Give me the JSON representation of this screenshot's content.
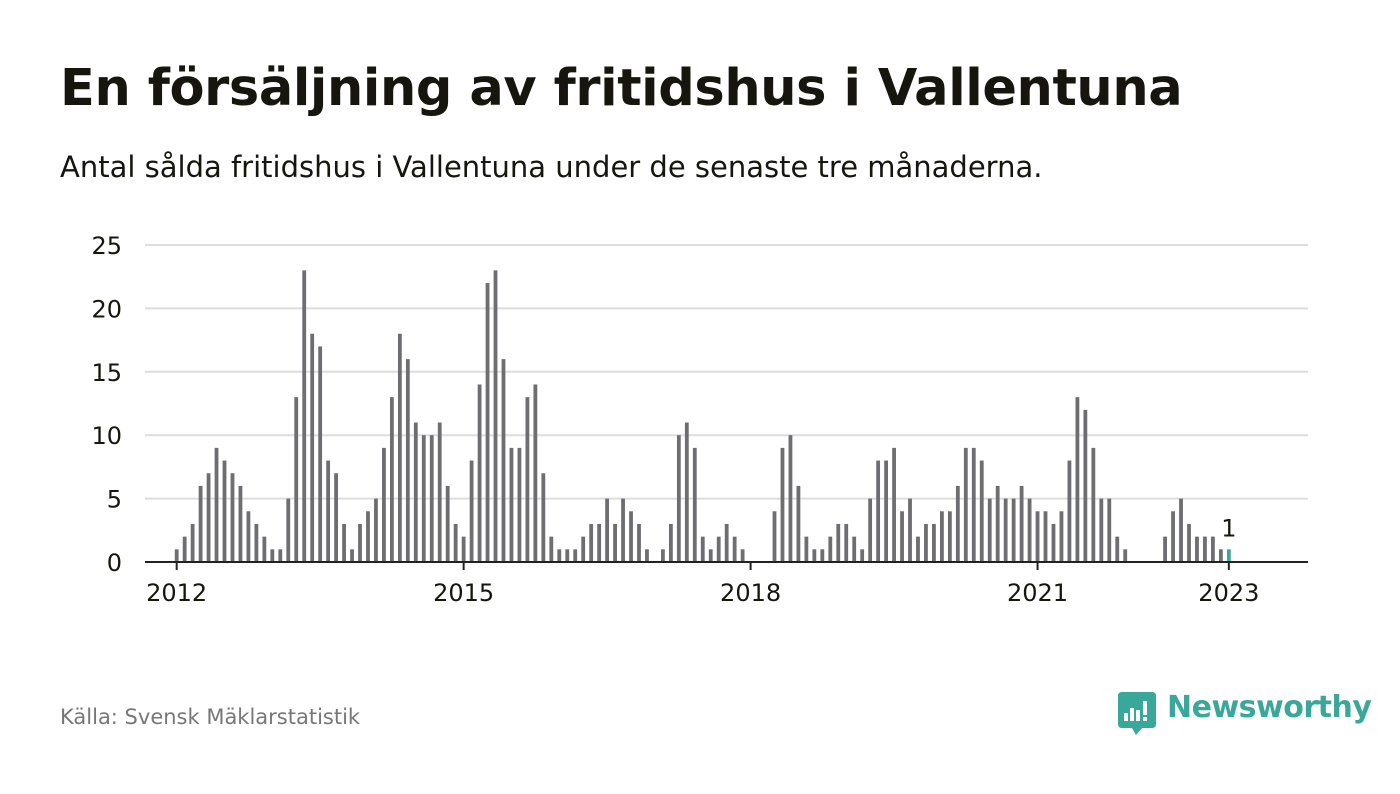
{
  "header": {
    "title": "En försäljning av fritidshus i Vallentuna",
    "subtitle": "Antal sålda fritidshus i Vallentuna under de senaste tre månaderna."
  },
  "footer": {
    "source": "Källa: Svensk Mäklarstatistik",
    "brand": "Newsworthy"
  },
  "colors": {
    "bar": "#6d6d72",
    "highlight": "#3aa79b",
    "grid": "#dddddd",
    "axis": "#222222",
    "text": "#16160f",
    "muted": "#777777"
  },
  "chart_data": {
    "type": "bar",
    "title": "En försäljning av fritidshus i Vallentuna",
    "subtitle": "Antal sålda fritidshus i Vallentuna under de senaste tre månaderna.",
    "xlabel": "",
    "ylabel": "",
    "ylim": [
      0,
      25
    ],
    "yticks": [
      0,
      5,
      10,
      15,
      20,
      25
    ],
    "xticks": [
      "2012",
      "2015",
      "2018",
      "2021",
      "2023"
    ],
    "grid": true,
    "start_month": "2011-07",
    "categories": [
      "2011-07",
      "2011-08",
      "2011-09",
      "2011-10",
      "2011-11",
      "2011-12",
      "2012-01",
      "2012-02",
      "2012-03",
      "2012-04",
      "2012-05",
      "2012-06",
      "2012-07",
      "2012-08",
      "2012-09",
      "2012-10",
      "2012-11",
      "2012-12",
      "2013-01",
      "2013-02",
      "2013-03",
      "2013-04",
      "2013-05",
      "2013-06",
      "2013-07",
      "2013-08",
      "2013-09",
      "2013-10",
      "2013-11",
      "2013-12",
      "2014-01",
      "2014-02",
      "2014-03",
      "2014-04",
      "2014-05",
      "2014-06",
      "2014-07",
      "2014-08",
      "2014-09",
      "2014-10",
      "2014-11",
      "2014-12",
      "2015-01",
      "2015-02",
      "2015-03",
      "2015-04",
      "2015-05",
      "2015-06",
      "2015-07",
      "2015-08",
      "2015-09",
      "2015-10",
      "2015-11",
      "2015-12",
      "2016-01",
      "2016-02",
      "2016-03",
      "2016-04",
      "2016-05",
      "2016-06",
      "2016-07",
      "2016-08",
      "2016-09",
      "2016-10",
      "2016-11",
      "2016-12",
      "2017-01",
      "2017-02",
      "2017-03",
      "2017-04",
      "2017-05",
      "2017-06",
      "2017-07",
      "2017-08",
      "2017-09",
      "2017-10",
      "2017-11",
      "2017-12",
      "2018-01",
      "2018-02",
      "2018-03",
      "2018-04",
      "2018-05",
      "2018-06",
      "2018-07",
      "2018-08",
      "2018-09",
      "2018-10",
      "2018-11",
      "2018-12",
      "2019-01",
      "2019-02",
      "2019-03",
      "2019-04",
      "2019-05",
      "2019-06",
      "2019-07",
      "2019-08",
      "2019-09",
      "2019-10",
      "2019-11",
      "2019-12",
      "2020-01",
      "2020-02",
      "2020-03",
      "2020-04",
      "2020-05",
      "2020-06",
      "2020-07",
      "2020-08",
      "2020-09",
      "2020-10",
      "2020-11",
      "2020-12",
      "2021-01",
      "2021-02",
      "2021-03",
      "2021-04",
      "2021-05",
      "2021-06",
      "2021-07",
      "2021-08",
      "2021-09",
      "2021-10",
      "2021-11",
      "2021-12",
      "2022-01",
      "2022-02",
      "2022-03",
      "2022-04",
      "2022-05",
      "2022-06",
      "2022-07",
      "2022-08",
      "2022-09",
      "2022-10",
      "2022-11",
      "2022-12",
      "2023-01"
    ],
    "values": [
      0,
      0,
      0,
      0,
      0,
      0,
      1,
      2,
      3,
      6,
      7,
      9,
      8,
      7,
      6,
      4,
      3,
      2,
      1,
      1,
      5,
      13,
      23,
      18,
      17,
      8,
      7,
      3,
      1,
      3,
      4,
      5,
      9,
      13,
      18,
      16,
      11,
      10,
      10,
      11,
      6,
      3,
      2,
      8,
      14,
      22,
      23,
      16,
      9,
      9,
      13,
      14,
      7,
      2,
      1,
      1,
      1,
      2,
      3,
      3,
      5,
      3,
      5,
      4,
      3,
      1,
      0,
      1,
      3,
      10,
      11,
      9,
      2,
      1,
      2,
      3,
      2,
      1,
      0,
      0,
      0,
      4,
      9,
      10,
      6,
      2,
      1,
      1,
      2,
      3,
      3,
      2,
      1,
      5,
      8,
      8,
      9,
      4,
      5,
      2,
      3,
      3,
      4,
      4,
      6,
      9,
      9,
      8,
      5,
      6,
      5,
      5,
      6,
      5,
      4,
      4,
      3,
      4,
      8,
      13,
      12,
      9,
      5,
      5,
      2,
      1,
      0,
      0,
      0,
      0,
      2,
      4,
      5,
      3,
      2,
      2,
      2,
      1,
      1
    ],
    "highlight_index": 138,
    "annotation": {
      "index": 138,
      "text": "1"
    }
  }
}
